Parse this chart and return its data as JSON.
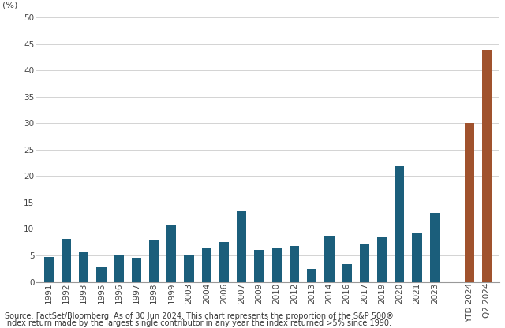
{
  "categories": [
    "1991",
    "1992",
    "1993",
    "1995",
    "1996",
    "1997",
    "1998",
    "1999",
    "2003",
    "2004",
    "2006",
    "2007",
    "2009",
    "2010",
    "2012",
    "2013",
    "2014",
    "2016",
    "2017",
    "2019",
    "2020",
    "2021",
    "2023",
    "YTD 2024",
    "Q2 2024"
  ],
  "values": [
    4.7,
    8.1,
    5.8,
    2.8,
    5.2,
    4.5,
    8.0,
    10.7,
    5.0,
    6.5,
    7.5,
    13.3,
    6.1,
    6.5,
    6.8,
    2.5,
    8.7,
    3.3,
    7.3,
    8.4,
    21.9,
    9.4,
    13.0,
    30.0,
    43.8
  ],
  "teal_color": "#1b5e7b",
  "orange_color": "#a0522d",
  "ylabel": "(%)",
  "ylim": [
    0,
    52
  ],
  "yticks": [
    0,
    5,
    10,
    15,
    20,
    25,
    30,
    35,
    40,
    45,
    50
  ],
  "background_color": "#ffffff",
  "grid_color": "#cccccc",
  "footnote_line1": "Source: FactSet/Bloomberg. As of 30 Jun 2024. This chart represents the proportion of the S&P 500®",
  "footnote_line2": "Index return made by the largest single contributor in any year the index returned >5% since 1990.",
  "footnote_fontsize": 7.0,
  "axis_fontsize": 7.5,
  "ylabel_fontsize": 8
}
